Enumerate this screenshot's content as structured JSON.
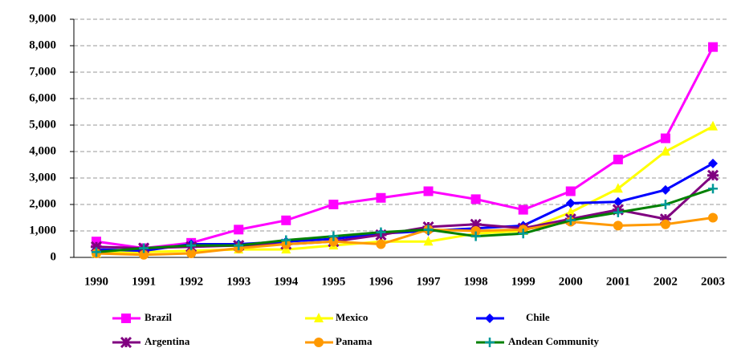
{
  "chart_data": {
    "type": "line",
    "categories": [
      "1990",
      "1991",
      "1992",
      "1993",
      "1994",
      "1995",
      "1996",
      "1997",
      "1998",
      "1999",
      "2000",
      "2001",
      "2002",
      "2003"
    ],
    "ylim": [
      0,
      9000
    ],
    "yticks": [
      0,
      {
        "value": 1000,
        "label": "1,000"
      },
      {
        "value": 2000,
        "label": "2,000"
      },
      {
        "value": 3000,
        "label": "3,000"
      },
      {
        "value": 4000,
        "label": "4,000"
      },
      {
        "value": 5000,
        "label": "5,000"
      },
      {
        "value": 6000,
        "label": "6,000"
      },
      {
        "value": 7000,
        "label": "7,000"
      },
      {
        "value": 8000,
        "label": "8,000"
      },
      {
        "value": 9000,
        "label": "9,000"
      }
    ],
    "grid": true,
    "legend": "bottom",
    "series": [
      {
        "name": "Brazil",
        "color": "#ff00ff",
        "marker": "square",
        "values": [
          600,
          350,
          550,
          1050,
          1400,
          2000,
          2250,
          2500,
          2200,
          1800,
          2500,
          3700,
          4500,
          7950
        ]
      },
      {
        "name": "Mexico",
        "color": "#ffff00",
        "marker": "triangle",
        "values": [
          150,
          200,
          250,
          300,
          300,
          450,
          600,
          600,
          900,
          1000,
          1700,
          2600,
          4000,
          4950
        ]
      },
      {
        "name": "Chile",
        "color": "#0000ff",
        "marker": "diamond",
        "values": [
          300,
          250,
          500,
          500,
          600,
          700,
          900,
          1000,
          1100,
          1200,
          2050,
          2100,
          2550,
          3550
        ]
      },
      {
        "name": "Argentina",
        "color": "#800080",
        "marker": "star",
        "values": [
          400,
          350,
          400,
          450,
          500,
          600,
          850,
          1150,
          1250,
          1100,
          1450,
          1800,
          1450,
          3100
        ]
      },
      {
        "name": "Panama",
        "color": "#ff9900",
        "marker": "circle",
        "values": [
          150,
          100,
          150,
          350,
          500,
          600,
          500,
          1050,
          1000,
          1050,
          1350,
          1200,
          1250,
          1500
        ]
      },
      {
        "name": "Andean Community",
        "color": "#008000",
        "marker": "plus",
        "values": [
          200,
          350,
          450,
          450,
          650,
          800,
          950,
          1050,
          800,
          900,
          1400,
          1700,
          2000,
          2600
        ]
      }
    ]
  }
}
